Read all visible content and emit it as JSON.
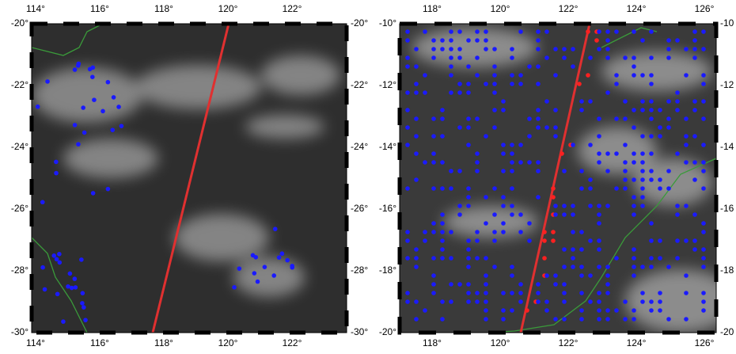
{
  "panels": [
    {
      "top_labels": [
        "114°",
        "116°",
        "118°",
        "120°",
        "122°"
      ],
      "bottom_labels": [
        "114°",
        "116°",
        "118°",
        "120°",
        "122°"
      ],
      "left_labels": [
        "-20°",
        "-22°",
        "-24°",
        "-26°",
        "-28°",
        "-30°"
      ],
      "right_labels": [
        "-20°",
        "-22°",
        "-24°",
        "-26°",
        "-28°",
        "-30°"
      ]
    },
    {
      "top_labels": [
        "118°",
        "120°",
        "122°",
        "124°",
        "126°"
      ],
      "bottom_labels": [
        "118°",
        "120°",
        "122°",
        "124°",
        "126°"
      ],
      "left_labels": [
        "-10°",
        "-12°",
        "-14°",
        "-16°",
        "-18°",
        "-20°"
      ],
      "right_labels": [
        "-10",
        "-12",
        "-14",
        "-16",
        "-18",
        "-20"
      ]
    }
  ]
}
